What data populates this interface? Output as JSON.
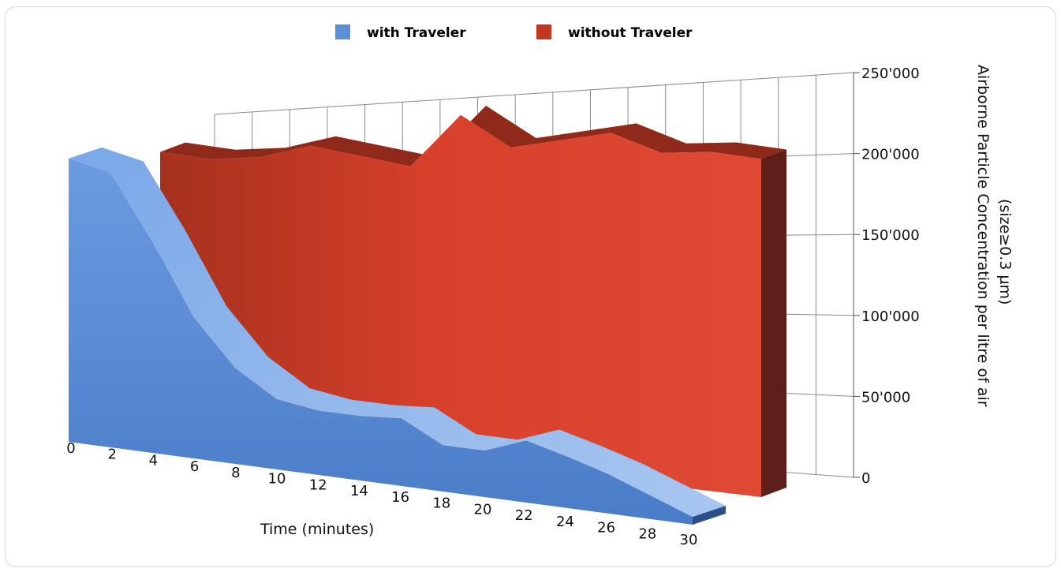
{
  "chart_data": {
    "type": "area",
    "title": "",
    "xlabel": "Time (minutes)",
    "ylabel": "Airborne Particle Concentration per litre of air",
    "ylabel_sub": "(size≥0.3 µm)",
    "x": [
      0,
      2,
      4,
      6,
      8,
      10,
      12,
      14,
      16,
      18,
      20,
      22,
      24,
      26,
      28,
      30
    ],
    "x_tick_labels": [
      "0",
      "2",
      "4",
      "6",
      "8",
      "10",
      "12",
      "14",
      "16",
      "18",
      "20",
      "22",
      "24",
      "26",
      "28",
      "30"
    ],
    "ylim": [
      0,
      250000
    ],
    "y_tick_labels": [
      "0",
      "50'000",
      "100'000",
      "150'000",
      "200'000",
      "250'000"
    ],
    "y_ticks": [
      0,
      50000,
      100000,
      150000,
      200000,
      250000
    ],
    "legend_position": "top-center",
    "grid": true,
    "series": [
      {
        "name": "with Traveler",
        "color": "#5b8fd6",
        "values": [
          188000,
          182000,
          140000,
          93000,
          63000,
          46000,
          42000,
          42000,
          44000,
          30000,
          30000,
          40000,
          33000,
          25000,
          15000,
          5000
        ]
      },
      {
        "name": "without Traveler",
        "color": "#d9402a",
        "x": [
          6,
          8,
          10,
          12,
          14,
          16,
          18,
          20,
          22,
          24,
          26,
          28,
          30
        ],
        "values": [
          180000,
          178000,
          182000,
          192000,
          188000,
          184000,
          219000,
          201000,
          208000,
          215000,
          205000,
          208000,
          206000
        ]
      }
    ]
  },
  "legend": {
    "items": [
      {
        "label": "with Traveler",
        "color": "#5b8fd6"
      },
      {
        "label": "without Traveler",
        "color": "#c0391f"
      }
    ]
  }
}
